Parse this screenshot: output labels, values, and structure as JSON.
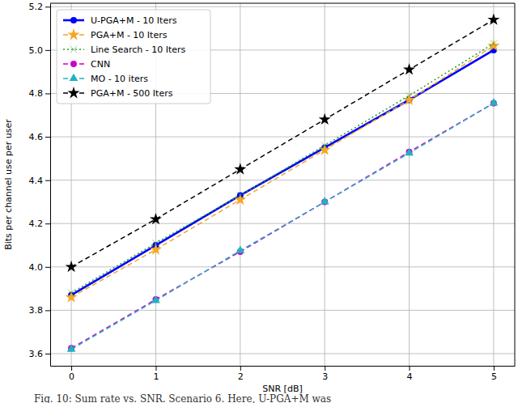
{
  "chart_data": {
    "type": "line",
    "x_label": "SNR [dB]",
    "y_label": "Bits per channel use per user",
    "caption": "Fig. 10: Sum rate vs. SNR. Scenario 6. Here, U-PGA+M was",
    "x": [
      0,
      1,
      2,
      3,
      4,
      5
    ],
    "xlim": [
      -0.25,
      5.25
    ],
    "xticks": [
      0,
      1,
      2,
      3,
      4,
      5
    ],
    "ylim": [
      3.544,
      5.216
    ],
    "yticks": [
      3.6,
      3.8,
      {
        "value": 4.0,
        "label": "4.0"
      },
      4.2,
      4.4,
      4.6,
      4.8,
      {
        "value": 5.0,
        "label": "5.0"
      },
      5.2
    ],
    "grid": true,
    "legend": "upper-left",
    "series": [
      {
        "name": "U-PGA+M - 10 Iters",
        "color": "#0000ff",
        "marker": "circle",
        "line_style": "solid",
        "values": [
          3.87,
          4.1,
          4.33,
          4.55,
          4.77,
          5.0
        ]
      },
      {
        "name": "PGA+M - 10 Iters",
        "color": "#f5a623",
        "marker": "star",
        "line_style": "dashed",
        "values": [
          3.86,
          4.08,
          4.31,
          4.54,
          4.77,
          5.02
        ]
      },
      {
        "name": "Line Search - 10 Iters",
        "color": "#2ca02c",
        "marker": "x",
        "line_style": "dotted",
        "values": [
          3.88,
          4.11,
          4.33,
          4.56,
          4.79,
          5.03
        ]
      },
      {
        "name": "CNN",
        "color": "#cc00cc",
        "marker": "circle",
        "line_style": "dashed",
        "values": [
          3.625,
          3.85,
          4.07,
          4.3,
          4.53,
          4.755
        ]
      },
      {
        "name": "MO - 10 iters",
        "color": "#20b2c0",
        "marker": "triangle",
        "line_style": "dashed",
        "values": [
          3.62,
          3.845,
          4.075,
          4.3,
          4.525,
          4.755
        ]
      },
      {
        "name": "PGA+M - 500 Iters",
        "color": "#000000",
        "marker": "star",
        "line_style": "dashed",
        "values": [
          4.0,
          4.22,
          4.45,
          4.68,
          4.91,
          5.14
        ]
      }
    ]
  }
}
